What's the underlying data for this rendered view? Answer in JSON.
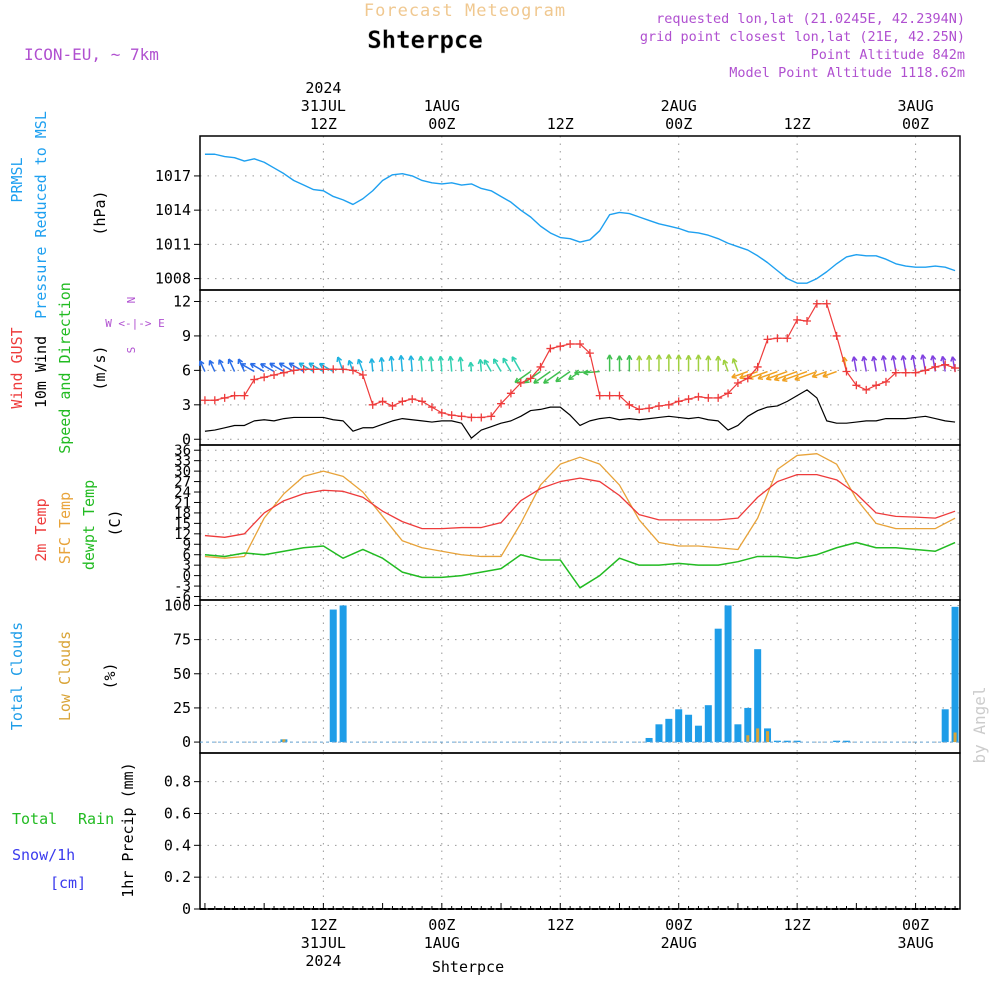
{
  "header": {
    "title": "Shterpce",
    "subtitle": "Forecast Meteogram",
    "model": "ICON-EU, ~ 7km",
    "info": [
      "requested lon,lat (21.0245E, 42.2394N)",
      "grid point closest lon,lat (21E, 42.25N)",
      "Point Altitude 842m",
      "Model Point Altitude 1118.62m"
    ],
    "footer_station": "Shterpce",
    "watermark": "by Angel"
  },
  "time_axis": {
    "top": [
      {
        "t": 12,
        "lines": [
          "2024",
          "31JUL",
          "12Z"
        ]
      },
      {
        "t": 24,
        "lines": [
          "1AUG",
          "00Z"
        ]
      },
      {
        "t": 36,
        "lines": [
          "12Z"
        ]
      },
      {
        "t": 48,
        "lines": [
          "2AUG",
          "00Z"
        ]
      },
      {
        "t": 60,
        "lines": [
          "12Z"
        ]
      },
      {
        "t": 72,
        "lines": [
          "3AUG",
          "00Z"
        ]
      }
    ],
    "bottom": [
      {
        "t": 12,
        "lines": [
          "12Z",
          "31JUL",
          "2024"
        ]
      },
      {
        "t": 24,
        "lines": [
          "00Z",
          "1AUG"
        ]
      },
      {
        "t": 36,
        "lines": [
          "12Z"
        ]
      },
      {
        "t": 48,
        "lines": [
          "00Z",
          "2AUG"
        ]
      },
      {
        "t": 60,
        "lines": [
          "12Z"
        ]
      },
      {
        "t": 72,
        "lines": [
          "00Z",
          "3AUG"
        ]
      }
    ]
  },
  "colors": {
    "pressure": "#1ea0f0",
    "gust": "#ee3b3b",
    "wind": "#000000",
    "temp": "#ee3b3b",
    "sfc": "#e8a33a",
    "dewpt": "#22bb22",
    "total_clouds": "#1e9de8",
    "low_clouds": "#d9a437",
    "rain": "#22bb22",
    "snow": "#3a3aee",
    "info": "#b050d0",
    "subtitle": "#f0c890"
  },
  "panels": {
    "pressure": {
      "labels": [
        "PRMSL",
        "Pressure Reduced to MSL"
      ],
      "unit": "(hPa)"
    },
    "wind": {
      "labels": [
        "Wind GUST",
        "10m Wind",
        "Speed and Direction"
      ],
      "unit": "(m/s)",
      "compass": [
        "N",
        "W <-|-> E",
        "S"
      ]
    },
    "temp": {
      "labels": [
        "2m Temp",
        "SFC Temp",
        "dewpt Temp"
      ],
      "unit": "(C)"
    },
    "clouds": {
      "labels": [
        "Total Clouds",
        "Low Clouds"
      ],
      "unit": "(%)"
    },
    "precip": {
      "labels": [
        "Total",
        "Rain",
        "Snow/1h",
        "[cm]"
      ],
      "unit": "1hr Precip (mm)"
    }
  },
  "chart_data": [
    {
      "type": "line",
      "name": "pressure",
      "ylabel": "PRMSL Pressure Reduced to MSL (hPa)",
      "yticks": [
        1008,
        1011,
        1014,
        1017
      ],
      "ylim": [
        1007.0,
        1020.5
      ],
      "series": [
        {
          "name": "PRMSL",
          "x": [
            0,
            1,
            2,
            3,
            4,
            5,
            6,
            7,
            8,
            9,
            10,
            11,
            12,
            13,
            14,
            15,
            16,
            17,
            18,
            19,
            20,
            21,
            22,
            23,
            24,
            25,
            26,
            27,
            28,
            29,
            30,
            31,
            32,
            33,
            34,
            35,
            36,
            37,
            38,
            39,
            40,
            41,
            42,
            43,
            44,
            45,
            46,
            47,
            48,
            49,
            50,
            51,
            52,
            53,
            54,
            55,
            56,
            57,
            58,
            59,
            60,
            61,
            62,
            63,
            64,
            65,
            66,
            67,
            68,
            69,
            70,
            71,
            72,
            73,
            74,
            75,
            76
          ],
          "y": [
            1018.9,
            1018.9,
            1018.7,
            1018.6,
            1018.3,
            1018.5,
            1018.2,
            1017.7,
            1017.2,
            1016.6,
            1016.2,
            1015.8,
            1015.7,
            1015.2,
            1014.9,
            1014.5,
            1015.0,
            1015.7,
            1016.6,
            1017.1,
            1017.2,
            1017.0,
            1016.6,
            1016.4,
            1016.3,
            1016.4,
            1016.2,
            1016.3,
            1015.9,
            1015.7,
            1015.2,
            1014.7,
            1014.0,
            1013.4,
            1012.6,
            1012.0,
            1011.6,
            1011.5,
            1011.2,
            1011.4,
            1012.2,
            1013.6,
            1013.8,
            1013.7,
            1013.4,
            1013.1,
            1012.8,
            1012.6,
            1012.4,
            1012.1,
            1012.0,
            1011.8,
            1011.5,
            1011.1,
            1010.8,
            1010.5,
            1010.0,
            1009.4,
            1008.7,
            1008.0,
            1007.6,
            1007.6,
            1008.0,
            1008.6,
            1009.3,
            1009.9,
            1010.1,
            1010.0,
            1010.0,
            1009.7,
            1009.3,
            1009.1,
            1009.0,
            1009.0,
            1009.1,
            1009.0,
            1008.7
          ]
        }
      ]
    },
    {
      "type": "line",
      "name": "wind",
      "ylabel": "Wind GUST / 10m Wind Speed and Direction (m/s)",
      "yticks": [
        0,
        3,
        6,
        9,
        12
      ],
      "ylim": [
        -0.5,
        13.0
      ],
      "series": [
        {
          "name": "Wind GUST",
          "x": [
            0,
            1,
            2,
            3,
            4,
            5,
            6,
            7,
            8,
            9,
            10,
            11,
            12,
            13,
            14,
            15,
            16,
            17,
            18,
            19,
            20,
            21,
            22,
            23,
            24,
            25,
            26,
            27,
            28,
            29,
            30,
            31,
            32,
            33,
            34,
            35,
            36,
            37,
            38,
            39,
            40,
            41,
            42,
            43,
            44,
            45,
            46,
            47,
            48,
            49,
            50,
            51,
            52,
            53,
            54,
            55,
            56,
            57,
            58,
            59,
            60,
            61,
            62,
            63,
            64,
            65,
            66,
            67,
            68,
            69,
            70,
            71,
            72,
            73,
            74,
            75,
            76
          ],
          "y": [
            3.4,
            3.4,
            3.6,
            3.8,
            3.8,
            5.2,
            5.4,
            5.6,
            5.8,
            6.0,
            6.1,
            6.1,
            6.1,
            6.1,
            6.1,
            6.0,
            5.6,
            3.0,
            3.3,
            2.9,
            3.3,
            3.5,
            3.3,
            2.8,
            2.3,
            2.1,
            2.0,
            1.9,
            1.9,
            2.0,
            3.1,
            4.0,
            4.9,
            5.3,
            6.3,
            7.9,
            8.1,
            8.3,
            8.3,
            7.5,
            3.8,
            3.8,
            3.8,
            3.0,
            2.6,
            2.7,
            2.9,
            3.0,
            3.3,
            3.5,
            3.7,
            3.6,
            3.6,
            4.0,
            4.9,
            5.3,
            6.3,
            8.7,
            8.8,
            8.8,
            10.4,
            10.3,
            11.8,
            11.8,
            9.0,
            5.9,
            4.7,
            4.3,
            4.7,
            5.0,
            5.8,
            5.8,
            5.8,
            6.0,
            6.3,
            6.5,
            6.2
          ]
        },
        {
          "name": "10m Wind",
          "x": [
            0,
            1,
            2,
            3,
            4,
            5,
            6,
            7,
            8,
            9,
            10,
            11,
            12,
            13,
            14,
            15,
            16,
            17,
            18,
            19,
            20,
            21,
            22,
            23,
            24,
            25,
            26,
            27,
            28,
            29,
            30,
            31,
            32,
            33,
            34,
            35,
            36,
            37,
            38,
            39,
            40,
            41,
            42,
            43,
            44,
            45,
            46,
            47,
            48,
            49,
            50,
            51,
            52,
            53,
            54,
            55,
            56,
            57,
            58,
            59,
            60,
            61,
            62,
            63,
            64,
            65,
            66,
            67,
            68,
            69,
            70,
            71,
            72,
            73,
            74,
            75,
            76
          ],
          "y": [
            0.7,
            0.8,
            1.0,
            1.2,
            1.2,
            1.6,
            1.7,
            1.6,
            1.8,
            1.9,
            1.9,
            1.9,
            1.9,
            1.7,
            1.6,
            0.7,
            1.0,
            1.0,
            1.3,
            1.6,
            1.8,
            1.7,
            1.6,
            1.5,
            1.6,
            1.6,
            1.4,
            0.1,
            0.8,
            1.1,
            1.4,
            1.6,
            2.0,
            2.5,
            2.6,
            2.8,
            2.8,
            2.1,
            1.2,
            1.6,
            1.8,
            1.9,
            1.7,
            1.8,
            1.7,
            1.8,
            1.9,
            2.0,
            1.9,
            1.8,
            1.9,
            1.7,
            1.6,
            0.8,
            1.2,
            2.0,
            2.5,
            2.8,
            2.9,
            3.3,
            3.8,
            4.3,
            3.6,
            1.6,
            1.4,
            1.4,
            1.5,
            1.6,
            1.6,
            1.8,
            1.8,
            1.8,
            1.9,
            2.0,
            1.8,
            1.6,
            1.5
          ]
        }
      ]
    },
    {
      "type": "line",
      "name": "temperature",
      "ylabel": "2m Temp / SFC Temp / dewpt Temp (C)",
      "yticks": [
        -6,
        -3,
        0,
        3,
        6,
        9,
        12,
        15,
        18,
        21,
        24,
        27,
        30,
        33,
        36
      ],
      "ylim": [
        -7.0,
        37.5
      ],
      "series": [
        {
          "name": "2m Temp",
          "x": [
            0,
            2,
            4,
            6,
            8,
            10,
            12,
            14,
            16,
            18,
            20,
            22,
            24,
            26,
            28,
            30,
            32,
            34,
            36,
            38,
            40,
            42,
            44,
            46,
            48,
            50,
            52,
            54,
            56,
            58,
            60,
            62,
            64,
            66,
            68,
            70,
            72,
            74,
            76
          ],
          "y": [
            11.5,
            11.0,
            12.0,
            18.0,
            21.5,
            23.5,
            24.5,
            24.2,
            22.5,
            18.5,
            15.5,
            13.5,
            13.5,
            13.8,
            13.8,
            15.2,
            21.5,
            25.0,
            27.0,
            28.0,
            27.0,
            23.0,
            17.5,
            16.0,
            16.0,
            16.0,
            16.0,
            16.5,
            22.5,
            27.0,
            29.0,
            29.0,
            27.5,
            23.5,
            18.0,
            17.0,
            16.8,
            16.5,
            18.5
          ]
        },
        {
          "name": "SFC Temp",
          "x": [
            0,
            2,
            4,
            6,
            8,
            10,
            12,
            14,
            16,
            18,
            20,
            22,
            24,
            26,
            28,
            30,
            32,
            34,
            36,
            38,
            40,
            42,
            44,
            46,
            48,
            50,
            52,
            54,
            56,
            58,
            60,
            62,
            64,
            66,
            68,
            70,
            72,
            74,
            76
          ],
          "y": [
            5.5,
            5.0,
            5.5,
            16.5,
            23.5,
            28.5,
            30.0,
            28.5,
            24.0,
            17.0,
            10.0,
            8.0,
            7.0,
            6.0,
            5.5,
            5.5,
            15.0,
            26.0,
            32.0,
            34.0,
            32.0,
            26.0,
            16.0,
            9.5,
            8.5,
            8.5,
            8.0,
            7.5,
            16.5,
            30.5,
            34.5,
            35.0,
            32.0,
            22.0,
            15.0,
            13.5,
            13.5,
            13.5,
            16.5
          ]
        },
        {
          "name": "dewpt Temp",
          "x": [
            0,
            2,
            4,
            6,
            8,
            10,
            12,
            14,
            16,
            18,
            20,
            22,
            24,
            26,
            28,
            30,
            32,
            34,
            36,
            38,
            40,
            42,
            44,
            46,
            48,
            50,
            52,
            54,
            56,
            58,
            60,
            62,
            64,
            66,
            68,
            70,
            72,
            74,
            76
          ],
          "y": [
            6.0,
            5.5,
            6.5,
            6.0,
            7.0,
            8.0,
            8.5,
            5.0,
            7.5,
            5.0,
            1.0,
            -0.5,
            -0.5,
            0.0,
            1.0,
            2.0,
            6.0,
            4.5,
            4.5,
            -3.5,
            0.0,
            5.0,
            3.0,
            3.0,
            3.5,
            3.0,
            3.0,
            4.0,
            5.5,
            5.5,
            5.0,
            6.0,
            8.0,
            9.5,
            8.0,
            8.0,
            7.5,
            7.0,
            9.5
          ]
        }
      ]
    },
    {
      "type": "bar",
      "name": "clouds",
      "ylabel": "Total Clouds / Low Clouds (%)",
      "yticks": [
        0,
        25,
        50,
        75,
        100
      ],
      "ylim": [
        -8,
        104
      ],
      "series": [
        {
          "name": "Total Clouds",
          "x": [
            8,
            13,
            14,
            45,
            46,
            47,
            48,
            49,
            50,
            51,
            52,
            53,
            54,
            55,
            56,
            57,
            58,
            59,
            60,
            61,
            62,
            63,
            64,
            65,
            66,
            72,
            75,
            76
          ],
          "y": [
            2,
            97,
            100,
            3,
            13,
            17,
            24,
            20,
            12,
            27,
            83,
            100,
            13,
            25,
            68,
            10,
            1,
            1,
            1,
            0,
            0,
            0,
            1,
            1,
            0,
            0,
            24,
            99
          ]
        },
        {
          "name": "Low Clouds",
          "x": [
            8,
            55,
            56,
            57,
            76
          ],
          "y": [
            2,
            5,
            10,
            8,
            7
          ]
        }
      ]
    },
    {
      "type": "bar",
      "name": "precipitation",
      "ylabel": "1hr Precip (mm)",
      "yticks": [
        0,
        0.2,
        0.4,
        0.6,
        0.8
      ],
      "ylim": [
        0,
        0.98
      ],
      "series": [
        {
          "name": "Total",
          "x": [],
          "y": []
        }
      ]
    }
  ]
}
